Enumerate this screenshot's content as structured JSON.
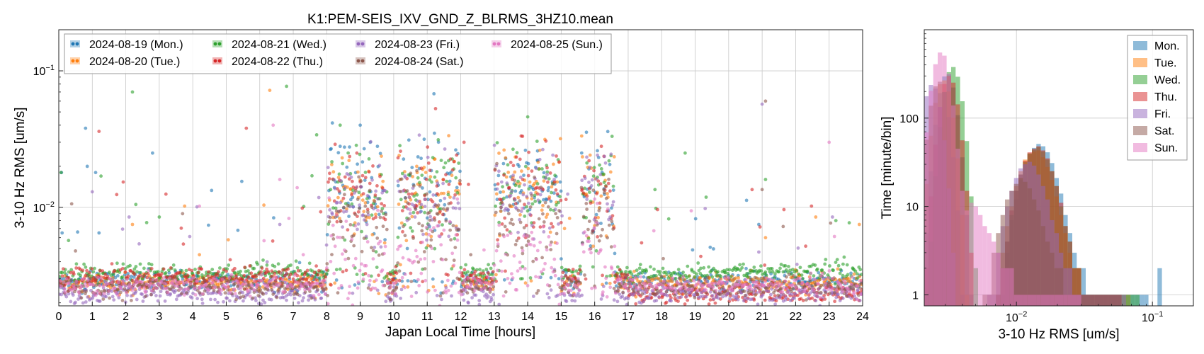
{
  "chart_data": [
    {
      "type": "scatter",
      "title": "K1:PEM-SEIS_IXV_GND_Z_BLRMS_3HZ10.mean",
      "xlabel": "Japan Local Time [hours]",
      "ylabel": "3-10 Hz RMS [um/s]",
      "xlim": [
        0,
        24
      ],
      "ylim": [
        0.0019,
        0.2
      ],
      "yscale": "log",
      "x_ticks": [
        0,
        1,
        2,
        3,
        4,
        5,
        6,
        7,
        8,
        9,
        10,
        11,
        12,
        13,
        14,
        15,
        16,
        17,
        18,
        19,
        20,
        21,
        22,
        23,
        24
      ],
      "x_tick_labels": [
        "0",
        "1",
        "2",
        "3",
        "4",
        "5",
        "6",
        "7",
        "8",
        "9",
        "10",
        "11",
        "12",
        "13",
        "14",
        "15",
        "16",
        "17",
        "18",
        "19",
        "20",
        "21",
        "22",
        "23",
        "24"
      ],
      "y_ticks": [
        0.01,
        0.1
      ],
      "y_tick_labels": [
        "10^{-2}",
        "10^{-1}"
      ],
      "grid": true,
      "legend_position": "top-left",
      "series": [
        {
          "name": "2024-08-19 (Mon.)",
          "color": "#1f77b4",
          "baseline": 0.0029,
          "work_level": 0.014,
          "outliers": [
            [
              0.08,
              0.018
            ],
            [
              0.1,
              0.0065
            ],
            [
              0.8,
              0.038
            ],
            [
              0.85,
              0.02
            ],
            [
              1.1,
              0.018
            ],
            [
              1.2,
              0.0065
            ],
            [
              2.8,
              0.025
            ],
            [
              8.4,
              0.028
            ],
            [
              9.0,
              0.04
            ],
            [
              9.3,
              0.03
            ],
            [
              11.2,
              0.068
            ],
            [
              14.3,
              0.022
            ],
            [
              15.0,
              0.0042
            ],
            [
              16.6,
              0.0046
            ],
            [
              20.9,
              0.0075
            ]
          ]
        },
        {
          "name": "2024-08-20 (Tue.)",
          "color": "#ff7f0e",
          "baseline": 0.0028,
          "work_level": 0.012,
          "outliers": [
            [
              2.2,
              0.0075
            ],
            [
              4.2,
              0.0045
            ],
            [
              6.3,
              0.072
            ],
            [
              8.3,
              0.009
            ],
            [
              10.2,
              0.0038
            ],
            [
              10.7,
              0.018
            ],
            [
              15.1,
              0.007
            ],
            [
              21.1,
              0.006
            ],
            [
              22.6,
              0.0085
            ],
            [
              23.9,
              0.0075
            ]
          ]
        },
        {
          "name": "2024-08-21 (Wed.)",
          "color": "#2ca02c",
          "baseline": 0.0033,
          "work_level": 0.013,
          "outliers": [
            [
              0.07,
              0.018
            ],
            [
              2.2,
              0.07
            ],
            [
              2.3,
              0.0105
            ],
            [
              3.0,
              0.0085
            ],
            [
              6.8,
              0.077
            ],
            [
              7.7,
              0.034
            ],
            [
              8.4,
              0.04
            ],
            [
              11.0,
              0.007
            ],
            [
              14.0,
              0.046
            ],
            [
              17.8,
              0.0135
            ],
            [
              18.7,
              0.025
            ],
            [
              21.1,
              0.016
            ],
            [
              23.2,
              0.008
            ]
          ]
        },
        {
          "name": "2024-08-22 (Thu.)",
          "color": "#d62728",
          "baseline": 0.0031,
          "work_level": 0.013,
          "outliers": [
            [
              1.2,
              0.036
            ],
            [
              3.2,
              0.0125
            ],
            [
              5.6,
              0.038
            ],
            [
              8.9,
              0.025
            ],
            [
              12.1,
              0.03
            ],
            [
              16.2,
              0.028
            ],
            [
              17.4,
              0.0055
            ],
            [
              20.7,
              0.0135
            ],
            [
              22.3,
              0.0052
            ]
          ]
        },
        {
          "name": "2024-08-23 (Fri.)",
          "color": "#9467bd",
          "baseline": 0.0023,
          "work_level": 0.011,
          "outliers": [
            [
              1.0,
              0.013
            ],
            [
              2.1,
              0.0085
            ],
            [
              6.6,
              0.0075
            ],
            [
              9.2,
              0.0075
            ],
            [
              14.8,
              0.0035
            ],
            [
              19.3,
              0.0098
            ],
            [
              21.0,
              0.057
            ],
            [
              23.1,
              0.0085
            ]
          ]
        },
        {
          "name": "2024-08-24 (Sat.)",
          "color": "#8c564b",
          "baseline": 0.0026,
          "work_level": 0.008,
          "outliers": [
            [
              0.5,
              0.0048
            ],
            [
              8.8,
              0.0062
            ],
            [
              11.1,
              0.0052
            ],
            [
              12.3,
              0.0045
            ],
            [
              21.1,
              0.06
            ],
            [
              21.0,
              0.0135
            ]
          ]
        },
        {
          "name": "2024-08-25 (Sun.)",
          "color": "#e377c2",
          "baseline": 0.0027,
          "work_level": 0.0042,
          "outliers": [
            [
              4.2,
              0.0102
            ],
            [
              6.4,
              0.04
            ],
            [
              6.6,
              0.016
            ],
            [
              7.3,
              0.0045
            ],
            [
              11.9,
              0.0115
            ],
            [
              16.0,
              0.0115
            ],
            [
              23.0,
              0.03
            ]
          ]
        }
      ],
      "work_hours": [
        [
          8.0,
          9.8
        ],
        [
          10.1,
          12.0
        ],
        [
          13.0,
          15.0
        ],
        [
          15.6,
          16.6
        ]
      ]
    },
    {
      "type": "bar",
      "subtype": "histogram",
      "xlabel": "3-10 Hz RMS [um/s]",
      "ylabel": "Time [minute/bin]",
      "xscale": "log",
      "yscale": "log",
      "xlim": [
        0.0021,
        0.2
      ],
      "ylim": [
        0.75,
        1000
      ],
      "x_ticks": [
        0.01,
        0.1
      ],
      "x_tick_labels": [
        "10^{-2}",
        "10^{-1}"
      ],
      "y_ticks": [
        1,
        10,
        100
      ],
      "y_tick_labels": [
        "1",
        "10",
        "100"
      ],
      "grid": true,
      "legend_position": "top-right",
      "series": [
        {
          "name": "Mon.",
          "color": "#1f77b4",
          "peak1_x": 0.0031,
          "peak1_y": 320,
          "peak2_x": 0.0145,
          "peak2_y": 48,
          "tail_max": 0.11,
          "tail_extra": [
            [
              0.11,
              2
            ]
          ]
        },
        {
          "name": "Tue.",
          "color": "#ff7f0e",
          "peak1_x": 0.0029,
          "peak1_y": 270,
          "peak2_x": 0.0135,
          "peak2_y": 42,
          "tail_max": 0.07,
          "tail_extra": []
        },
        {
          "name": "Wed.",
          "color": "#2ca02c",
          "peak1_x": 0.0034,
          "peak1_y": 380,
          "peak2_x": 0.014,
          "peak2_y": 45,
          "tail_max": 0.08,
          "tail_extra": []
        },
        {
          "name": "Thu.",
          "color": "#d62728",
          "peak1_x": 0.0032,
          "peak1_y": 300,
          "peak2_x": 0.014,
          "peak2_y": 46,
          "tail_max": 0.06,
          "tail_extra": []
        },
        {
          "name": "Fri.",
          "color": "#9467bd",
          "peak1_x": 0.0024,
          "peak1_y": 240,
          "peak2_x": 0.012,
          "peak2_y": 30,
          "tail_max": 0.065,
          "tail_extra": []
        },
        {
          "name": "Sat.",
          "color": "#8c564b",
          "peak1_x": 0.0027,
          "peak1_y": 260,
          "peak2_x": 0.0105,
          "peak2_y": 18,
          "tail_max": 0.06,
          "tail_extra": []
        },
        {
          "name": "Sun.",
          "color": "#e377c2",
          "peak1_x": 0.0028,
          "peak1_y": 560,
          "peak2_x": 0.0045,
          "peak2_y": 8,
          "tail_max": 0.03,
          "tail_extra": []
        }
      ]
    }
  ]
}
